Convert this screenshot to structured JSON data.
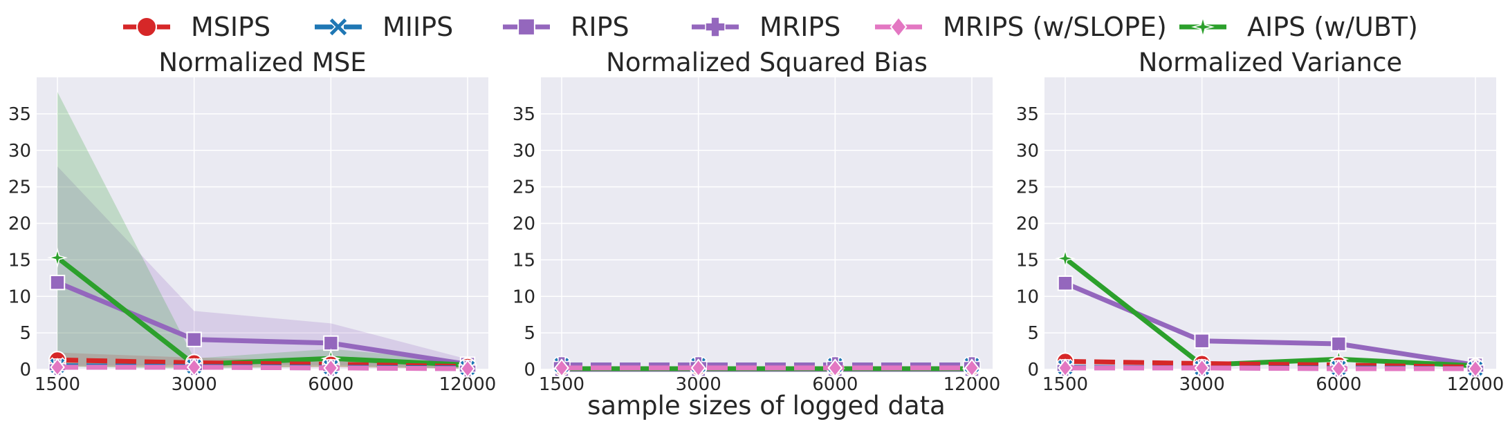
{
  "legend": [
    {
      "name": "MSIPS",
      "color": "#d62728",
      "marker": "circle",
      "dash": true
    },
    {
      "name": "MIIPS",
      "color": "#1f77b4",
      "marker": "x",
      "dash": true
    },
    {
      "name": "RIPS",
      "color": "#9467bd",
      "marker": "square",
      "dash": false
    },
    {
      "name": "MRIPS",
      "color": "#9467bd",
      "marker": "plus",
      "dash": true
    },
    {
      "name": "MRIPS (w/SLOPE)",
      "color": "#e377c2",
      "marker": "diamond",
      "dash": true
    },
    {
      "name": "AIPS (w/UBT)",
      "color": "#2ca02c",
      "marker": "star",
      "dash": false
    }
  ],
  "xlabel": "sample sizes of logged data",
  "chart_data": [
    {
      "type": "line",
      "title": "Normalized MSE",
      "x": [
        "1500",
        "3000",
        "6000",
        "12000"
      ],
      "ylim": [
        0,
        40
      ],
      "yticks": [
        0,
        5,
        10,
        15,
        20,
        25,
        30,
        35
      ],
      "grid": true,
      "series": [
        {
          "name": "MSIPS",
          "values": [
            1.3,
            0.9,
            0.7,
            0.4
          ],
          "band": [
            [
              0.4,
              2.3
            ],
            [
              0.3,
              1.6
            ],
            [
              0.3,
              1.2
            ],
            [
              0.1,
              0.7
            ]
          ]
        },
        {
          "name": "MIIPS",
          "values": [
            0.5,
            0.4,
            0.3,
            0.2
          ],
          "band": null
        },
        {
          "name": "RIPS",
          "values": [
            11.9,
            4.1,
            3.6,
            0.7
          ],
          "band": [
            [
              0.5,
              27.8
            ],
            [
              0.6,
              8.0
            ],
            [
              0.6,
              6.3
            ],
            [
              0.1,
              1.4
            ]
          ]
        },
        {
          "name": "MRIPS",
          "values": [
            0.3,
            0.3,
            0.2,
            0.1
          ],
          "band": null
        },
        {
          "name": "MRIPS (w/SLOPE)",
          "values": [
            0.3,
            0.3,
            0.2,
            0.1
          ],
          "band": null
        },
        {
          "name": "AIPS (w/UBT)",
          "values": [
            15.3,
            0.7,
            1.5,
            0.6
          ],
          "band": [
            [
              0.4,
              38.0
            ],
            [
              0.1,
              1.5
            ],
            [
              0.4,
              2.8
            ],
            [
              0.1,
              1.1
            ]
          ]
        }
      ]
    },
    {
      "type": "line",
      "title": "Normalized Squared Bias",
      "x": [
        "1500",
        "3000",
        "6000",
        "12000"
      ],
      "ylim": [
        0,
        40
      ],
      "yticks": [
        0,
        5,
        10,
        15,
        20,
        25,
        30,
        35
      ],
      "grid": true,
      "series": [
        {
          "name": "MSIPS",
          "values": [
            0.3,
            0.3,
            0.3,
            0.3
          ],
          "band": null
        },
        {
          "name": "MIIPS",
          "values": [
            0.6,
            0.6,
            0.6,
            0.6
          ],
          "band": null
        },
        {
          "name": "RIPS",
          "values": [
            0.0,
            0.0,
            0.0,
            0.0
          ],
          "band": null
        },
        {
          "name": "MRIPS",
          "values": [
            0.6,
            0.6,
            0.6,
            0.6
          ],
          "band": null
        },
        {
          "name": "MRIPS (w/SLOPE)",
          "values": [
            0.2,
            0.2,
            0.2,
            0.2
          ],
          "band": null
        },
        {
          "name": "AIPS (w/UBT)",
          "values": [
            0.1,
            0.1,
            0.1,
            0.1
          ],
          "band": null
        }
      ]
    },
    {
      "type": "line",
      "title": "Normalized Variance",
      "x": [
        "1500",
        "3000",
        "6000",
        "12000"
      ],
      "ylim": [
        0,
        40
      ],
      "yticks": [
        0,
        5,
        10,
        15,
        20,
        25,
        30,
        35
      ],
      "grid": true,
      "series": [
        {
          "name": "MSIPS",
          "values": [
            1.1,
            0.8,
            0.6,
            0.3
          ],
          "band": null
        },
        {
          "name": "MIIPS",
          "values": [
            0.3,
            0.2,
            0.2,
            0.1
          ],
          "band": null
        },
        {
          "name": "RIPS",
          "values": [
            11.8,
            3.9,
            3.5,
            0.6
          ],
          "band": null
        },
        {
          "name": "MRIPS",
          "values": [
            0.2,
            0.2,
            0.1,
            0.1
          ],
          "band": null
        },
        {
          "name": "MRIPS (w/SLOPE)",
          "values": [
            0.2,
            0.2,
            0.1,
            0.1
          ],
          "band": null
        },
        {
          "name": "AIPS (w/UBT)",
          "values": [
            15.2,
            0.6,
            1.4,
            0.5
          ],
          "band": null
        }
      ]
    }
  ]
}
